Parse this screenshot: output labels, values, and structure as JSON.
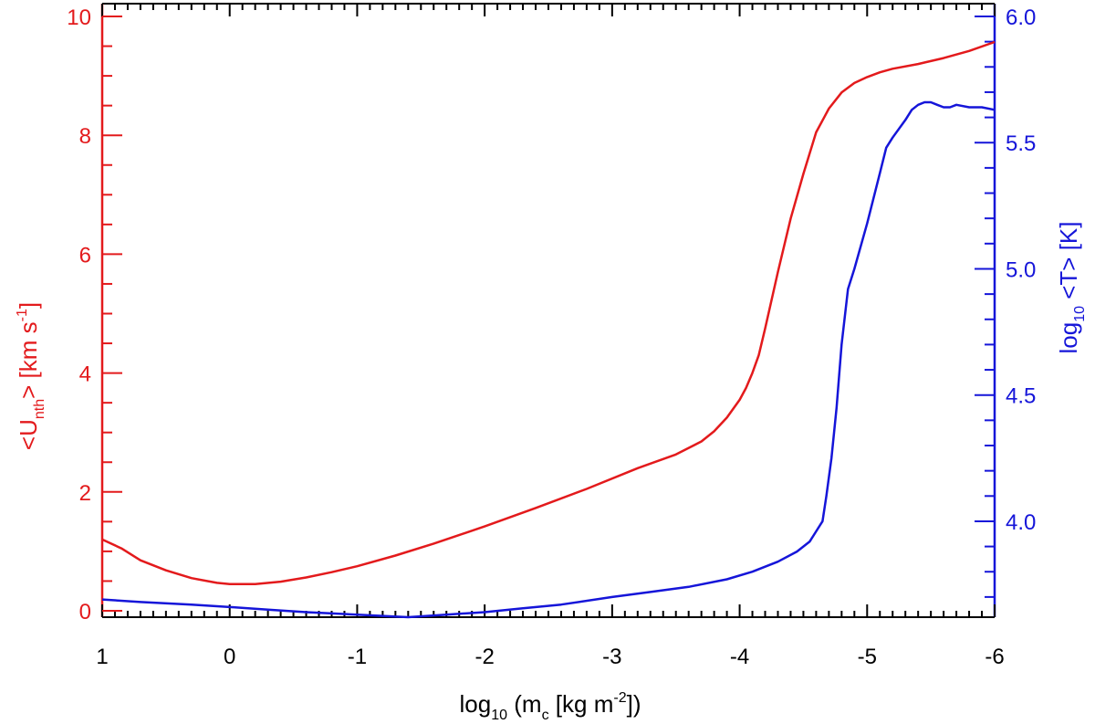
{
  "chart_data": {
    "type": "line",
    "xlabel": {
      "pre": "log",
      "sub": "10",
      "mid": " (m",
      "sub2": "c",
      "post1": " [kg m",
      "sup": "-2",
      "post2": "])"
    },
    "ylabel_left": {
      "pre": "<U",
      "sub": "nth",
      "mid": "> [km s",
      "sup": "-1",
      "post": "]"
    },
    "ylabel_right": {
      "pre": "log",
      "sub": "10",
      "post": " <T> [K]"
    },
    "xlim": [
      1,
      -6
    ],
    "ylim_left": [
      0,
      10
    ],
    "ylim_right": [
      3.62,
      6.0
    ],
    "x_ticks": [
      {
        "value": 1,
        "label": "1"
      },
      {
        "value": 0,
        "label": "0"
      },
      {
        "value": -1,
        "label": "-1"
      },
      {
        "value": -2,
        "label": "-2"
      },
      {
        "value": -3,
        "label": "-3"
      },
      {
        "value": -4,
        "label": "-4"
      },
      {
        "value": -5,
        "label": "-5"
      },
      {
        "value": -6,
        "label": "-6"
      }
    ],
    "y_ticks_left": [
      {
        "value": 0,
        "label": "0"
      },
      {
        "value": 2,
        "label": "2"
      },
      {
        "value": 4,
        "label": "4"
      },
      {
        "value": 6,
        "label": "6"
      },
      {
        "value": 8,
        "label": "8"
      },
      {
        "value": 10,
        "label": "10"
      }
    ],
    "y_ticks_right": [
      {
        "value": 4.0,
        "label": "4.0"
      },
      {
        "value": 4.5,
        "label": "4.5"
      },
      {
        "value": 5.0,
        "label": "5.0"
      },
      {
        "value": 5.5,
        "label": "5.5"
      },
      {
        "value": 6.0,
        "label": "6.0"
      }
    ],
    "series": [
      {
        "axis": "left",
        "color": "#e31a1c",
        "x": [
          1.0,
          0.85,
          0.7,
          0.5,
          0.3,
          0.1,
          0.0,
          -0.2,
          -0.4,
          -0.6,
          -0.8,
          -1.0,
          -1.3,
          -1.6,
          -2.0,
          -2.4,
          -2.8,
          -3.2,
          -3.5,
          -3.7,
          -3.8,
          -3.9,
          -4.0,
          -4.05,
          -4.1,
          -4.15,
          -4.2,
          -4.3,
          -4.4,
          -4.5,
          -4.6,
          -4.7,
          -4.8,
          -4.9,
          -5.0,
          -5.1,
          -5.2,
          -5.4,
          -5.6,
          -5.8,
          -6.0
        ],
        "y": [
          1.2,
          1.05,
          0.85,
          0.68,
          0.55,
          0.47,
          0.45,
          0.45,
          0.49,
          0.56,
          0.65,
          0.75,
          0.93,
          1.13,
          1.42,
          1.73,
          2.05,
          2.4,
          2.63,
          2.85,
          3.02,
          3.25,
          3.55,
          3.75,
          4.0,
          4.3,
          4.75,
          5.7,
          6.6,
          7.35,
          8.05,
          8.45,
          8.72,
          8.88,
          8.98,
          9.06,
          9.12,
          9.2,
          9.3,
          9.42,
          9.57
        ]
      },
      {
        "axis": "right",
        "color": "#1515d9",
        "x": [
          1.0,
          0.7,
          0.3,
          0.0,
          -0.3,
          -0.6,
          -1.0,
          -1.4,
          -1.7,
          -2.0,
          -2.3,
          -2.6,
          -3.0,
          -3.3,
          -3.6,
          -3.9,
          -4.1,
          -4.3,
          -4.45,
          -4.55,
          -4.6,
          -4.65,
          -4.68,
          -4.72,
          -4.76,
          -4.8,
          -4.85,
          -4.9,
          -5.0,
          -5.1,
          -5.15,
          -5.2,
          -5.3,
          -5.35,
          -5.4,
          -5.45,
          -5.5,
          -5.55,
          -5.6,
          -5.65,
          -5.7,
          -5.8,
          -5.9,
          -6.0
        ],
        "y": [
          3.69,
          3.68,
          3.67,
          3.66,
          3.65,
          3.64,
          3.63,
          3.62,
          3.63,
          3.64,
          3.655,
          3.67,
          3.7,
          3.72,
          3.74,
          3.77,
          3.8,
          3.84,
          3.88,
          3.92,
          3.96,
          4.0,
          4.1,
          4.25,
          4.45,
          4.7,
          4.92,
          5.0,
          5.18,
          5.38,
          5.48,
          5.52,
          5.59,
          5.63,
          5.65,
          5.66,
          5.66,
          5.65,
          5.64,
          5.64,
          5.65,
          5.64,
          5.64,
          5.63
        ]
      }
    ]
  }
}
